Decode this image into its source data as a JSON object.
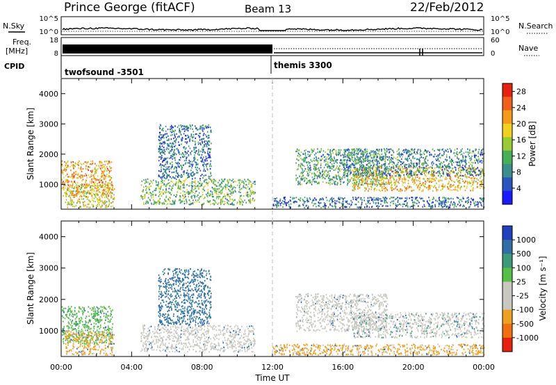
{
  "header": {
    "title": "Prince George (fitACF)",
    "beam": "Beam 13",
    "date": "22/Feb/2012"
  },
  "noise_panel": {
    "left_label": "N.Sky",
    "right_label": "N.Search",
    "left_ticks": [
      "10^5",
      "10^0"
    ],
    "right_ticks": [
      "10^5",
      "10^0"
    ]
  },
  "freq_panel": {
    "left_label_1": "Freq.",
    "left_label_2": "[MHz]",
    "right_label": "Nave",
    "left_ticks": [
      "18",
      "8"
    ],
    "right_ticks": [
      "60",
      "0"
    ]
  },
  "cpid_panel": {
    "label": "CPID",
    "modes": [
      {
        "name": "twofsound -3501",
        "start_hour": 0
      },
      {
        "name": "themis 3300",
        "start_hour": 12.0
      }
    ]
  },
  "chart_data": [
    {
      "type": "heatmap",
      "title": "Power",
      "ylabel": "Slant Range [km]",
      "xlabel": "Time UT",
      "xlim": [
        0,
        24
      ],
      "ylim": [
        180,
        4500
      ],
      "x_ticks": [
        "00:00",
        "04:00",
        "08:00",
        "12:00",
        "16:00",
        "20:00",
        "00:00"
      ],
      "y_ticks": [
        1000,
        2000,
        3000,
        4000
      ],
      "colorbar": {
        "label": "Power [dB]",
        "ticks": [
          4,
          8,
          12,
          16,
          20,
          24,
          28
        ],
        "range": [
          0,
          30
        ],
        "colors": [
          "#1a1aff",
          "#2a55c0",
          "#3a8f8a",
          "#45b055",
          "#99cc33",
          "#f0d020",
          "#f59a1a",
          "#f0601a",
          "#e82010"
        ]
      },
      "scatter_regions": [
        {
          "x": [
            0,
            2.9
          ],
          "y": [
            600,
            1800
          ],
          "level": 22
        },
        {
          "x": [
            0.2,
            3.0
          ],
          "y": [
            250,
            1000
          ],
          "level": 18
        },
        {
          "x": [
            4.5,
            11.0
          ],
          "y": [
            350,
            1200
          ],
          "level": 12
        },
        {
          "x": [
            5.5,
            8.5
          ],
          "y": [
            1200,
            3000
          ],
          "level": 6
        },
        {
          "x": [
            13.3,
            18.5
          ],
          "y": [
            1000,
            2200
          ],
          "level": 10
        },
        {
          "x": [
            16.5,
            24
          ],
          "y": [
            800,
            1600
          ],
          "level": 20
        },
        {
          "x": [
            16,
            24
          ],
          "y": [
            1300,
            2200
          ],
          "level": 8
        },
        {
          "x": [
            12,
            24
          ],
          "y": [
            250,
            600
          ],
          "level": 6
        }
      ]
    },
    {
      "type": "heatmap",
      "title": "Velocity",
      "ylabel": "Slant Range [km]",
      "xlabel": "Time UT",
      "xlim": [
        0,
        24
      ],
      "ylim": [
        180,
        4500
      ],
      "x_ticks": [
        "00:00",
        "04:00",
        "08:00",
        "12:00",
        "16:00",
        "20:00",
        "00:00"
      ],
      "y_ticks": [
        1000,
        2000,
        3000,
        4000
      ],
      "colorbar": {
        "label": "Velocity [m s⁻¹]",
        "ticks": [
          1000,
          500,
          100,
          25,
          -25,
          -100,
          -500,
          -1000
        ],
        "colors": [
          "#2040c0",
          "#2f6fa8",
          "#3a9a7a",
          "#55c045",
          "#c8c8c0",
          "#c8c8c0",
          "#f0a020",
          "#f07010",
          "#e82010"
        ]
      },
      "scatter_regions": [
        {
          "x": [
            0,
            2.9
          ],
          "y": [
            600,
            1800
          ],
          "level": 25
        },
        {
          "x": [
            0.2,
            3.0
          ],
          "y": [
            250,
            1000
          ],
          "level": -500
        },
        {
          "x": [
            4.5,
            11.0
          ],
          "y": [
            350,
            1200
          ],
          "level": -100
        },
        {
          "x": [
            5.5,
            8.5
          ],
          "y": [
            1200,
            3000
          ],
          "level": 500
        },
        {
          "x": [
            13.3,
            18.5
          ],
          "y": [
            1000,
            2200
          ],
          "level": -100
        },
        {
          "x": [
            16.5,
            24
          ],
          "y": [
            800,
            1600
          ],
          "level": 0
        },
        {
          "x": [
            12,
            24
          ],
          "y": [
            250,
            600
          ],
          "level": -500
        }
      ]
    }
  ]
}
